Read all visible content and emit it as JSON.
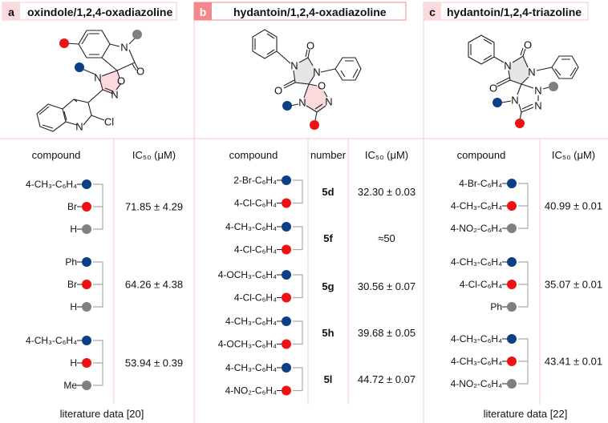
{
  "colors": {
    "blue": "#0b3f86",
    "red": "#ee1111",
    "grey": "#808080",
    "accent": "#f4878a",
    "pale": "#fadadd"
  },
  "panels": [
    {
      "letter": "a",
      "title": "oxindole/1,2,4-oxadiazoline",
      "atoms": [
        "N",
        "O",
        "N",
        "O",
        "N",
        "N",
        "Cl"
      ],
      "headers": {
        "compound": "compound",
        "ic50": "IC₅₀ (μM)"
      },
      "entries": [
        {
          "substituents": [
            {
              "label": "4-CH₃-C₆H₄",
              "color": "blue"
            },
            {
              "label": "Br",
              "color": "red"
            },
            {
              "label": "H",
              "color": "grey"
            }
          ],
          "ic50": "71.85 ± 4.29"
        },
        {
          "substituents": [
            {
              "label": "Ph",
              "color": "blue"
            },
            {
              "label": "Br",
              "color": "red"
            },
            {
              "label": "H",
              "color": "grey"
            }
          ],
          "ic50": "64.26 ± 4.38"
        },
        {
          "substituents": [
            {
              "label": "4-CH₃-C₆H₄",
              "color": "blue"
            },
            {
              "label": "H",
              "color": "red"
            },
            {
              "label": "Me",
              "color": "grey"
            }
          ],
          "ic50": "53.94 ± 0.39"
        }
      ],
      "footer": "literature data [20]"
    },
    {
      "letter": "b",
      "title": "hydantoin/1,2,4-oxadiazoline",
      "atoms": [
        "N",
        "O",
        "N",
        "O",
        "O",
        "N",
        "N"
      ],
      "headers": {
        "compound": "compound",
        "number": "number",
        "ic50": "IC₅₀ (μM)"
      },
      "entries": [
        {
          "substituents": [
            {
              "label": "2-Br-C₆H₄",
              "color": "blue"
            },
            {
              "label": "4-Cl-C₆H₄",
              "color": "red"
            }
          ],
          "number": "5d",
          "ic50": "32.30 ± 0.03"
        },
        {
          "substituents": [
            {
              "label": "4-CH₃-C₆H₄",
              "color": "blue"
            },
            {
              "label": "4-Cl-C₆H₄",
              "color": "red"
            }
          ],
          "number": "5f",
          "ic50": "≈50"
        },
        {
          "substituents": [
            {
              "label": "4-OCH₃-C₆H₄",
              "color": "blue"
            },
            {
              "label": "4-Cl-C₆H₄",
              "color": "red"
            }
          ],
          "number": "5g",
          "ic50": "30.56 ± 0.07"
        },
        {
          "substituents": [
            {
              "label": "4-CH₃-C₆H₄",
              "color": "blue"
            },
            {
              "label": "4-OCH₃-C₆H₄",
              "color": "red"
            }
          ],
          "number": "5h",
          "ic50": "39.68 ± 0.05"
        },
        {
          "substituents": [
            {
              "label": "4-CH₃-C₆H₄",
              "color": "blue"
            },
            {
              "label": "4-NO₂-C₆H₄",
              "color": "red"
            }
          ],
          "number": "5l",
          "ic50": "44.72 ± 0.07"
        }
      ]
    },
    {
      "letter": "c",
      "title": "hydantoin/1,2,4-triazoline",
      "atoms": [
        "N",
        "O",
        "N",
        "O",
        "N",
        "N",
        "N"
      ],
      "headers": {
        "compound": "compound",
        "ic50": "IC₅₀ (μM)"
      },
      "entries": [
        {
          "substituents": [
            {
              "label": "4-Br-C₆H₄",
              "color": "blue"
            },
            {
              "label": "4-CH₃-C₆H₄",
              "color": "red"
            },
            {
              "label": "4-NO₂-C₆H₄",
              "color": "grey"
            }
          ],
          "ic50": "40.99 ± 0.01"
        },
        {
          "substituents": [
            {
              "label": "4-CH₃-C₆H₄",
              "color": "blue"
            },
            {
              "label": "4-Cl-C₆H₄",
              "color": "red"
            },
            {
              "label": "Ph",
              "color": "grey"
            }
          ],
          "ic50": "35.07 ± 0.01"
        },
        {
          "substituents": [
            {
              "label": "4-CH₃-C₆H₄",
              "color": "blue"
            },
            {
              "label": "4-CH₃-C₆H₄",
              "color": "red"
            },
            {
              "label": "4-NO₂-C₆H₄",
              "color": "grey"
            }
          ],
          "ic50": "43.41 ± 0.01"
        }
      ],
      "footer": "literature data [22]"
    }
  ]
}
